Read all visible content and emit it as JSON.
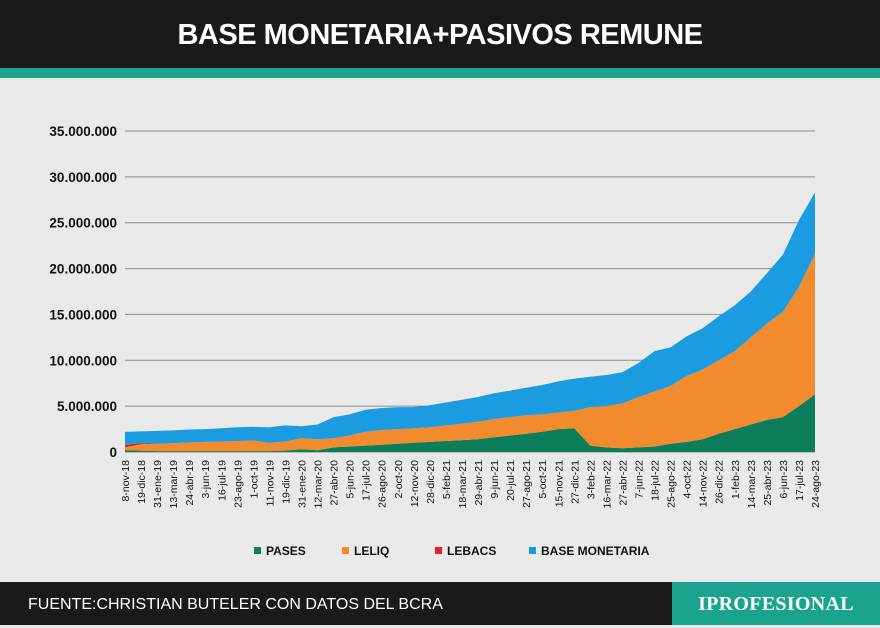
{
  "header": {
    "title": "BASE MONETARIA+PASIVOS REMUNE"
  },
  "footer": {
    "source": "FUENTE:CHRISTIAN BUTELER CON DATOS DEL BCRA",
    "brand": "IPROFESIONAL"
  },
  "colors": {
    "pases": "#0e7d5c",
    "leliq": "#f28a2e",
    "lebacs": "#e6212a",
    "base": "#1b9be0",
    "accent": "#1aa38e",
    "dark": "#1a1a1a"
  },
  "chart_data": {
    "type": "area",
    "stacked": true,
    "title": "BASE MONETARIA+PASIVOS REMUNE",
    "xlabel": "",
    "ylabel": "",
    "ylim": [
      0,
      35000000
    ],
    "yticks": [
      0,
      5000000,
      10000000,
      15000000,
      20000000,
      25000000,
      30000000,
      35000000
    ],
    "ytick_labels": [
      "0",
      "5.000.000",
      "10.000.000",
      "15.000.000",
      "20.000.000",
      "25.000.000",
      "30.000.000",
      "35.000.000"
    ],
    "grid": true,
    "legend_position": "bottom",
    "categories": [
      "8-nov-18",
      "19-dic-18",
      "31-ene-19",
      "13-mar-19",
      "24-abr-19",
      "3-jun-19",
      "16-jul-19",
      "23-ago-19",
      "1-oct-19",
      "11-nov-19",
      "19-dic-19",
      "31-ene-20",
      "12-mar-20",
      "27-abr-20",
      "5-jun-20",
      "17-jul-20",
      "26-ago-20",
      "2-oct-20",
      "12-nov-20",
      "28-dic-20",
      "5-feb-21",
      "18-mar-21",
      "29-abr-21",
      "9-jun-21",
      "20-jul-21",
      "27-ago-21",
      "5-oct-21",
      "15-nov-21",
      "27-dic-21",
      "3-feb-22",
      "16-mar-22",
      "27-abr-22",
      "7-jun-22",
      "18-jul-22",
      "25-ago-22",
      "4-oct-22",
      "14-nov-22",
      "26-dic-22",
      "1-feb-23",
      "14-mar-23",
      "25-abr-23",
      "6-jun-23",
      "17-jul-23",
      "24-ago-23"
    ],
    "series": [
      {
        "name": "PASES",
        "values": [
          200000,
          150000,
          100000,
          100000,
          100000,
          100000,
          100000,
          100000,
          100000,
          100000,
          150000,
          300000,
          200000,
          500000,
          600000,
          700000,
          800000,
          900000,
          1000000,
          1100000,
          1200000,
          1300000,
          1400000,
          1600000,
          1800000,
          2000000,
          2200000,
          2500000,
          2600000,
          700000,
          500000,
          400000,
          500000,
          600000,
          900000,
          1100000,
          1400000,
          2000000,
          2500000,
          3000000,
          3500000,
          3800000,
          5000000,
          6300000
        ]
      },
      {
        "name": "LELIQ",
        "values": [
          300000,
          700000,
          800000,
          850000,
          950000,
          1000000,
          1050000,
          1100000,
          1150000,
          900000,
          1000000,
          1200000,
          1200000,
          1000000,
          1200000,
          1500000,
          1600000,
          1600000,
          1600000,
          1600000,
          1700000,
          1800000,
          1900000,
          2000000,
          2000000,
          2000000,
          1900000,
          1800000,
          1900000,
          4200000,
          4500000,
          4900000,
          5500000,
          6000000,
          6300000,
          7200000,
          7600000,
          8000000,
          8500000,
          9500000,
          10500000,
          11500000,
          13000000,
          15300000
        ]
      },
      {
        "name": "LEBACS",
        "values": [
          300000,
          100000,
          0,
          0,
          0,
          0,
          0,
          0,
          0,
          0,
          0,
          0,
          0,
          0,
          0,
          0,
          0,
          0,
          0,
          0,
          0,
          0,
          0,
          0,
          0,
          0,
          0,
          0,
          0,
          0,
          0,
          0,
          0,
          0,
          0,
          0,
          0,
          0,
          0,
          0,
          0,
          0,
          0,
          0
        ]
      },
      {
        "name": "BASE MONETARIA",
        "values": [
          1400000,
          1300000,
          1400000,
          1400000,
          1400000,
          1400000,
          1450000,
          1500000,
          1500000,
          1700000,
          1750000,
          1300000,
          1600000,
          2300000,
          2300000,
          2400000,
          2400000,
          2400000,
          2300000,
          2400000,
          2500000,
          2600000,
          2700000,
          2800000,
          2900000,
          3000000,
          3200000,
          3400000,
          3500000,
          3300000,
          3400000,
          3400000,
          3700000,
          4400000,
          4200000,
          4300000,
          4500000,
          4800000,
          5000000,
          5000000,
          5500000,
          6200000,
          7300000,
          6700000
        ]
      }
    ]
  }
}
